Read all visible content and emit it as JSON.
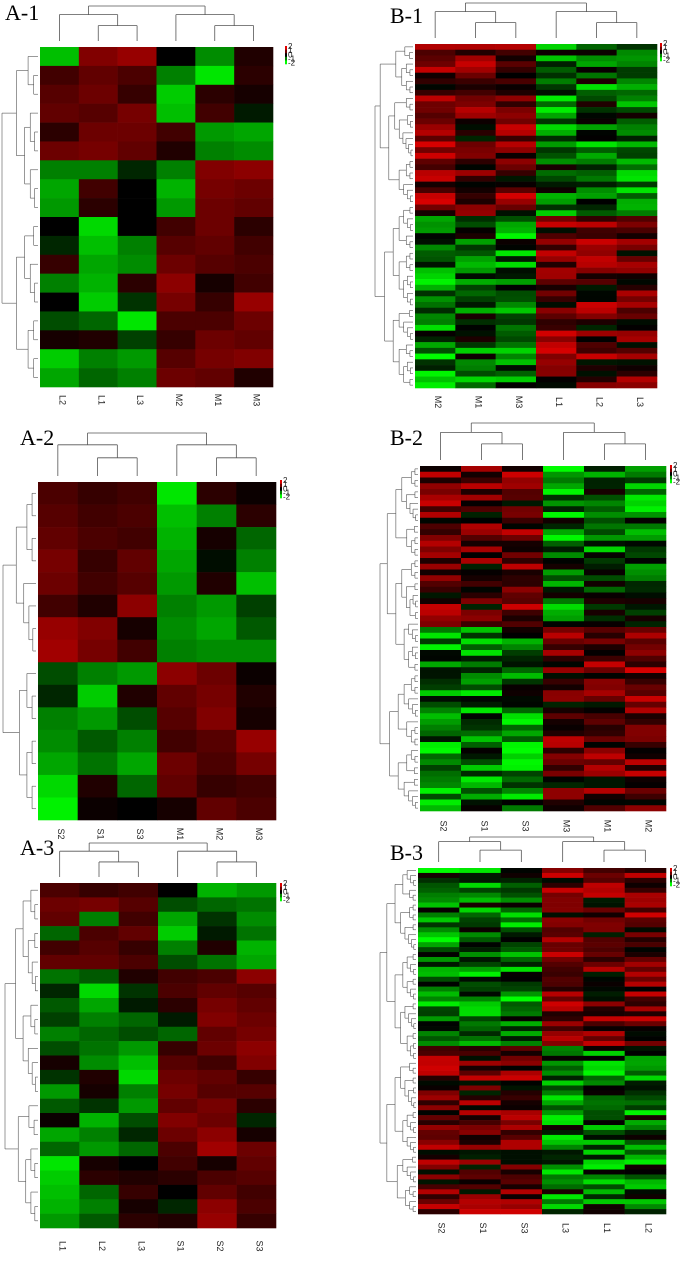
{
  "chart_data": [
    {
      "type": "heatmap",
      "panel": "A-1",
      "columns": [
        "L2",
        "L1",
        "L3",
        "M2",
        "M1",
        "M3"
      ],
      "rows": 18,
      "scale_labels": [
        "2",
        "1",
        "0",
        "-1",
        "-2"
      ],
      "vmin": -2,
      "vmax": 2,
      "values": [
        [
          -1.5,
          1.2,
          1.4,
          0.0,
          -1.1,
          0.3
        ],
        [
          0.6,
          0.9,
          0.7,
          -1.0,
          -1.8,
          0.4
        ],
        [
          0.8,
          1.0,
          0.5,
          -1.6,
          0.4,
          0.2
        ],
        [
          0.9,
          0.8,
          1.1,
          -1.5,
          0.6,
          -0.2
        ],
        [
          0.4,
          1.0,
          1.0,
          0.6,
          -1.2,
          -1.3
        ],
        [
          1.0,
          1.1,
          0.9,
          0.3,
          -1.0,
          -1.1
        ],
        [
          -1.0,
          -1.0,
          -0.3,
          -1.0,
          1.2,
          1.3
        ],
        [
          -1.3,
          0.6,
          0.0,
          -1.4,
          1.1,
          1.0
        ],
        [
          -1.2,
          0.4,
          0.0,
          -1.2,
          1.0,
          0.9
        ],
        [
          0.0,
          -1.7,
          0.0,
          0.6,
          1.0,
          0.4
        ],
        [
          -0.3,
          -1.5,
          -1.0,
          0.8,
          0.9,
          0.6
        ],
        [
          0.5,
          -1.3,
          -1.1,
          1.0,
          0.8,
          0.7
        ],
        [
          -1.0,
          -1.4,
          0.4,
          1.3,
          0.2,
          0.6
        ],
        [
          0.0,
          -1.6,
          -0.4,
          1.1,
          0.5,
          1.4
        ],
        [
          -0.6,
          -0.8,
          -1.8,
          0.7,
          0.7,
          1.0
        ],
        [
          0.2,
          0.3,
          -0.5,
          0.5,
          1.0,
          0.9
        ],
        [
          -1.6,
          -1.0,
          -1.2,
          0.8,
          1.1,
          1.2
        ],
        [
          -1.3,
          -0.8,
          -1.0,
          1.0,
          0.9,
          0.3
        ]
      ]
    },
    {
      "type": "heatmap",
      "panel": "B-1",
      "columns": [
        "M2",
        "M1",
        "M3",
        "L1",
        "L2",
        "L3"
      ],
      "rows": 60,
      "scale_labels": [
        "2",
        "1",
        "0",
        "-1",
        "-2"
      ],
      "vmin": -2,
      "vmax": 2,
      "groups": [
        {
          "rows": 30,
          "means": [
            1.0,
            0.8,
            0.9,
            -0.8,
            -0.7,
            -0.9
          ]
        },
        {
          "rows": 30,
          "means": [
            -1.0,
            -0.8,
            -0.9,
            0.9,
            0.8,
            0.9
          ]
        }
      ]
    },
    {
      "type": "heatmap",
      "panel": "A-2",
      "columns": [
        "S2",
        "S1",
        "S3",
        "M1",
        "M2",
        "M3"
      ],
      "rows": 15,
      "scale_labels": [
        "2",
        "1",
        "0",
        "-1",
        "-2"
      ],
      "vmin": -2,
      "vmax": 2,
      "values": [
        [
          0.7,
          0.5,
          0.6,
          -1.8,
          0.4,
          0.1
        ],
        [
          0.8,
          0.6,
          0.7,
          -1.5,
          -1.0,
          0.4
        ],
        [
          0.9,
          0.7,
          0.6,
          -1.4,
          0.2,
          -0.8
        ],
        [
          1.1,
          0.5,
          0.9,
          -1.3,
          -0.1,
          -1.0
        ],
        [
          1.0,
          0.6,
          0.8,
          -1.2,
          0.3,
          -1.5
        ],
        [
          0.6,
          0.3,
          1.3,
          -1.0,
          -1.2,
          -0.5
        ],
        [
          1.4,
          1.2,
          0.2,
          -1.1,
          -1.3,
          -0.7
        ],
        [
          1.5,
          1.1,
          0.6,
          -1.0,
          -1.1,
          -1.1
        ],
        [
          -0.6,
          -1.0,
          -1.2,
          1.3,
          1.0,
          0.1
        ],
        [
          -0.3,
          -1.6,
          0.3,
          0.9,
          1.1,
          0.3
        ],
        [
          -1.0,
          -1.2,
          -0.6,
          0.8,
          1.2,
          0.2
        ],
        [
          -1.1,
          -0.7,
          -1.0,
          0.6,
          0.8,
          1.4
        ],
        [
          -1.3,
          -0.9,
          -1.3,
          1.0,
          0.7,
          1.1
        ],
        [
          -1.7,
          0.3,
          -0.8,
          0.9,
          0.5,
          0.6
        ],
        [
          -1.9,
          0.1,
          0.0,
          0.2,
          0.9,
          0.7
        ]
      ]
    },
    {
      "type": "heatmap",
      "panel": "B-2",
      "columns": [
        "S2",
        "S1",
        "S3",
        "M3",
        "M1",
        "M2"
      ],
      "rows": 60,
      "scale_labels": [
        "2",
        "1",
        "0",
        "-1",
        "-2"
      ],
      "vmin": -2,
      "vmax": 2,
      "groups": [
        {
          "rows": 28,
          "means": [
            0.9,
            0.8,
            0.9,
            -0.9,
            -0.8,
            -0.8
          ]
        },
        {
          "rows": 32,
          "means": [
            -1.0,
            -0.8,
            -0.9,
            0.8,
            0.9,
            1.0
          ]
        }
      ]
    },
    {
      "type": "heatmap",
      "panel": "A-3",
      "columns": [
        "L1",
        "L2",
        "L3",
        "S1",
        "S2",
        "S3"
      ],
      "rows": 24,
      "scale_labels": [
        "2",
        "1",
        "0",
        "-1",
        "-2"
      ],
      "vmin": -2,
      "vmax": 2,
      "values": [
        [
          0.7,
          0.5,
          0.6,
          0.0,
          -1.4,
          -1.2
        ],
        [
          1.0,
          1.1,
          0.8,
          -0.6,
          -0.8,
          -0.9
        ],
        [
          0.9,
          -1.0,
          0.6,
          -1.3,
          -0.4,
          -1.1
        ],
        [
          -0.8,
          0.7,
          0.9,
          -1.6,
          -0.2,
          -0.9
        ],
        [
          0.6,
          0.8,
          0.5,
          -1.0,
          0.3,
          -1.4
        ],
        [
          0.9,
          0.9,
          0.7,
          -0.6,
          -0.9,
          -1.3
        ],
        [
          -0.9,
          -0.7,
          0.3,
          0.6,
          0.7,
          1.3
        ],
        [
          -0.3,
          -1.7,
          -0.4,
          0.7,
          0.9,
          0.8
        ],
        [
          -0.7,
          -1.3,
          -0.2,
          0.4,
          1.1,
          0.9
        ],
        [
          -0.5,
          -1.0,
          -0.8,
          -0.2,
          1.2,
          1.0
        ],
        [
          -1.0,
          -0.8,
          -0.6,
          -0.8,
          0.9,
          1.1
        ],
        [
          -0.6,
          -0.9,
          -1.2,
          0.5,
          1.0,
          1.3
        ],
        [
          0.2,
          -1.1,
          -1.5,
          0.8,
          0.6,
          1.2
        ],
        [
          -0.4,
          0.3,
          -1.7,
          1.0,
          0.9,
          0.5
        ],
        [
          -1.2,
          0.2,
          -1.0,
          1.1,
          0.8,
          0.8
        ],
        [
          -0.7,
          -0.4,
          -1.2,
          0.9,
          1.1,
          0.4
        ],
        [
          0.1,
          -1.4,
          -0.6,
          1.2,
          1.0,
          -0.3
        ],
        [
          -1.3,
          -1.0,
          -0.3,
          1.0,
          1.3,
          0.2
        ],
        [
          -0.8,
          -1.2,
          -0.8,
          0.7,
          1.5,
          1.0
        ],
        [
          -1.8,
          0.2,
          0.0,
          0.6,
          0.2,
          0.9
        ],
        [
          -1.6,
          0.4,
          0.3,
          0.4,
          0.7,
          0.8
        ],
        [
          -1.5,
          -0.8,
          0.5,
          0.0,
          0.9,
          0.6
        ],
        [
          -1.4,
          -1.0,
          0.2,
          -0.3,
          1.3,
          0.7
        ],
        [
          -1.2,
          -0.7,
          0.4,
          0.3,
          1.4,
          0.5
        ]
      ]
    },
    {
      "type": "heatmap",
      "panel": "B-3",
      "columns": [
        "S2",
        "S1",
        "S3",
        "L3",
        "L1",
        "L2"
      ],
      "rows": 70,
      "scale_labels": [
        "2",
        "1",
        "0",
        "-1",
        "-2"
      ],
      "vmin": -2,
      "vmax": 2,
      "groups": [
        {
          "rows": 36,
          "means": [
            -0.9,
            -0.8,
            -0.9,
            0.9,
            0.8,
            0.9
          ]
        },
        {
          "rows": 34,
          "means": [
            0.9,
            0.8,
            0.9,
            -0.8,
            -0.9,
            -0.8
          ]
        }
      ]
    }
  ],
  "colors": {
    "high": "#e00000",
    "mid": "#000000",
    "low": "#00ff00"
  }
}
